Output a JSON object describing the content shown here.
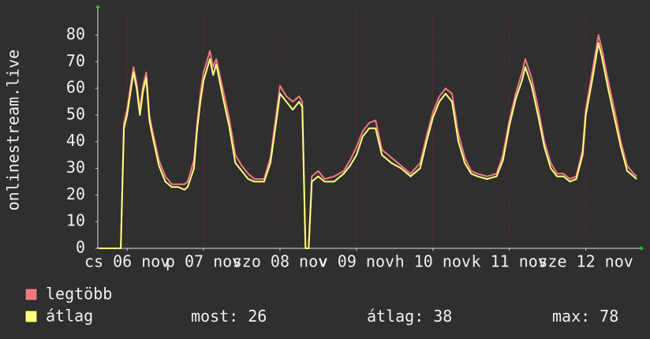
{
  "chart_data": {
    "type": "line",
    "ylabel": "onlinestream.live",
    "x": [
      -9,
      -2,
      -1,
      0,
      2,
      3,
      4,
      5,
      6,
      7,
      8,
      10,
      12,
      14,
      16,
      18,
      19,
      21,
      22,
      23,
      24,
      26,
      27,
      28,
      30,
      32,
      34,
      36,
      38,
      40,
      43,
      45,
      47,
      48,
      50,
      52,
      54,
      55,
      56,
      57,
      58,
      60,
      62,
      65,
      68,
      70,
      72,
      74,
      76,
      78,
      80,
      83,
      86,
      89,
      92,
      94,
      96,
      98,
      100,
      102,
      104,
      106,
      108,
      110,
      113,
      116,
      118,
      120,
      122,
      124,
      125,
      127,
      129,
      131,
      133,
      135,
      137,
      139,
      141,
      143,
      144,
      146,
      148,
      149,
      151,
      153,
      155,
      157,
      159,
      160
    ],
    "series": [
      {
        "name": "legtöbb",
        "color": "#f07a80",
        "values": [
          0,
          0,
          47,
          52,
          68,
          62,
          52,
          61,
          66,
          50,
          44,
          33,
          27,
          24,
          24,
          24,
          25,
          33,
          47,
          58,
          66,
          74,
          68,
          71,
          60,
          49,
          35,
          31,
          28,
          26,
          26,
          34,
          52,
          61,
          57,
          55,
          57,
          55,
          0,
          0,
          27,
          29,
          26,
          27,
          29,
          33,
          38,
          44,
          47,
          48,
          37,
          34,
          31,
          28,
          32,
          42,
          51,
          57,
          60,
          58,
          43,
          34,
          29,
          28,
          27,
          28,
          35,
          48,
          58,
          66,
          71,
          64,
          53,
          40,
          32,
          28,
          28,
          26,
          27,
          37,
          52,
          66,
          80,
          75,
          63,
          52,
          40,
          31,
          28,
          27
        ]
      },
      {
        "name": "átlag",
        "color": "#ffff80",
        "values": [
          0,
          0,
          45,
          50,
          66,
          60,
          50,
          59,
          64,
          48,
          42,
          31,
          25,
          23,
          23,
          22,
          23,
          30,
          45,
          55,
          63,
          71,
          65,
          69,
          57,
          46,
          32,
          29,
          26,
          25,
          25,
          32,
          49,
          58,
          55,
          52,
          55,
          53,
          0,
          0,
          25,
          27,
          25,
          25,
          28,
          31,
          35,
          42,
          45,
          45,
          35,
          32,
          30,
          27,
          30,
          40,
          49,
          55,
          58,
          55,
          40,
          32,
          28,
          27,
          26,
          27,
          33,
          46,
          56,
          63,
          68,
          61,
          50,
          38,
          30,
          27,
          27,
          25,
          26,
          35,
          50,
          63,
          77,
          72,
          60,
          49,
          38,
          29,
          27,
          26
        ]
      }
    ],
    "xlim": [
      -9.2,
      160.2
    ],
    "xticks": [
      {
        "value": 0,
        "label": "cs 06 nov"
      },
      {
        "value": 24,
        "label": "p 07 nov"
      },
      {
        "value": 48,
        "label": "szo 08 nov"
      },
      {
        "value": 72,
        "label": "v 09 nov"
      },
      {
        "value": 96,
        "label": "h 10 nov"
      },
      {
        "value": 120,
        "label": "k 11 nov"
      },
      {
        "value": 144,
        "label": "sze 12 nov"
      }
    ],
    "ylim": [
      0,
      89
    ],
    "yticks": [
      0,
      10,
      20,
      30,
      40,
      50,
      60,
      70,
      80
    ],
    "grid": true,
    "stats": [
      {
        "label": "most:",
        "value": 26
      },
      {
        "label": "átlag:",
        "value": 38
      },
      {
        "label": "max:",
        "value": 78
      }
    ]
  }
}
